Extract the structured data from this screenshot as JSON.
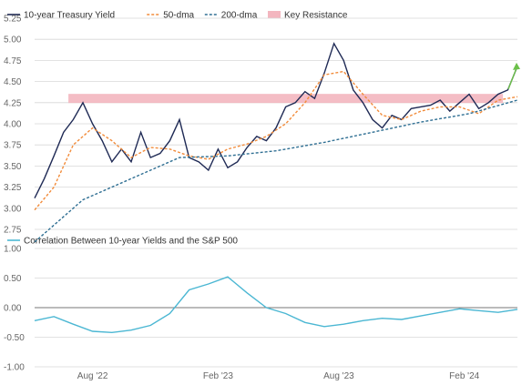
{
  "colors": {
    "yield": "#1f2a55",
    "dma50": "#f28c3b",
    "dma200": "#2f6f93",
    "resistance": "#f3b6bf",
    "correlation": "#4bb7d3",
    "grid": "#d8d8d8",
    "zeroline": "#777777",
    "arrow": "#6cc04a"
  },
  "chart_data": [
    {
      "type": "line",
      "legend": [
        "10-year Treasury Yield",
        "50-dma",
        "200-dma",
        "Key Resistance"
      ],
      "yticks": [
        "5.25",
        "5.00",
        "4.75",
        "4.50",
        "4.25",
        "4.00",
        "3.75",
        "3.50",
        "3.25",
        "3.00",
        "2.75"
      ],
      "ylim": [
        2.75,
        5.25
      ],
      "xlim": [
        0,
        100
      ],
      "key_resistance": 4.3,
      "series": [
        {
          "name": "10-year Treasury Yield",
          "x": [
            0,
            2,
            4,
            6,
            8,
            10,
            12,
            14,
            16,
            18,
            20,
            22,
            24,
            26,
            28,
            30,
            32,
            34,
            36,
            38,
            40,
            42,
            44,
            46,
            48,
            50,
            52,
            54,
            56,
            58,
            60,
            62,
            64,
            66,
            68,
            70,
            72,
            74,
            76,
            78,
            80,
            82,
            84,
            86,
            88,
            90,
            92,
            94,
            96,
            98,
            100
          ],
          "y": [
            3.12,
            3.35,
            3.62,
            3.9,
            4.05,
            4.25,
            4.0,
            3.8,
            3.55,
            3.7,
            3.55,
            3.9,
            3.6,
            3.65,
            3.8,
            4.05,
            3.6,
            3.55,
            3.45,
            3.7,
            3.48,
            3.55,
            3.72,
            3.85,
            3.8,
            3.95,
            4.2,
            4.25,
            4.38,
            4.3,
            4.6,
            4.95,
            4.75,
            4.4,
            4.25,
            4.05,
            3.95,
            4.1,
            4.05,
            4.18,
            4.2,
            4.22,
            4.28,
            4.15,
            4.25,
            4.35,
            4.18,
            4.25,
            4.35,
            4.4,
            4.68
          ]
        },
        {
          "name": "50-dma",
          "x": [
            0,
            4,
            8,
            12,
            16,
            20,
            24,
            28,
            32,
            36,
            40,
            44,
            48,
            52,
            56,
            60,
            64,
            68,
            72,
            76,
            80,
            84,
            88,
            92,
            96,
            100
          ],
          "y": [
            2.98,
            3.25,
            3.75,
            3.95,
            3.8,
            3.6,
            3.72,
            3.7,
            3.62,
            3.58,
            3.7,
            3.76,
            3.85,
            4.0,
            4.25,
            4.58,
            4.62,
            4.35,
            4.1,
            4.05,
            4.15,
            4.2,
            4.2,
            4.12,
            4.28,
            4.32
          ]
        },
        {
          "name": "200-dma",
          "x": [
            0,
            10,
            20,
            30,
            40,
            50,
            60,
            70,
            80,
            90,
            100
          ],
          "y": [
            2.6,
            3.1,
            3.35,
            3.6,
            3.62,
            3.68,
            3.78,
            3.9,
            4.02,
            4.12,
            4.28
          ]
        }
      ]
    },
    {
      "type": "line",
      "legend": [
        "Correlation Between 10-year Yields and the S&P 500"
      ],
      "yticks": [
        "1.00",
        "0.50",
        "0.00",
        "-0.50",
        "-1.00"
      ],
      "ylim": [
        -1.0,
        1.0
      ],
      "xticks": [
        "Aug '22",
        "Feb '23",
        "Aug '23",
        "Feb '24"
      ],
      "series": [
        {
          "name": "Correlation Between 10-year Yields and the S&P 500",
          "x": [
            0,
            4,
            8,
            12,
            16,
            20,
            24,
            28,
            32,
            36,
            40,
            44,
            48,
            52,
            56,
            60,
            64,
            68,
            72,
            76,
            80,
            84,
            88,
            92,
            96,
            100
          ],
          "y": [
            -0.22,
            -0.15,
            -0.28,
            -0.4,
            -0.42,
            -0.38,
            -0.3,
            -0.1,
            0.3,
            0.4,
            0.52,
            0.25,
            0.0,
            -0.1,
            -0.25,
            -0.32,
            -0.28,
            -0.22,
            -0.18,
            -0.2,
            -0.14,
            -0.08,
            -0.02,
            -0.05,
            -0.08,
            -0.03
          ]
        }
      ]
    }
  ]
}
